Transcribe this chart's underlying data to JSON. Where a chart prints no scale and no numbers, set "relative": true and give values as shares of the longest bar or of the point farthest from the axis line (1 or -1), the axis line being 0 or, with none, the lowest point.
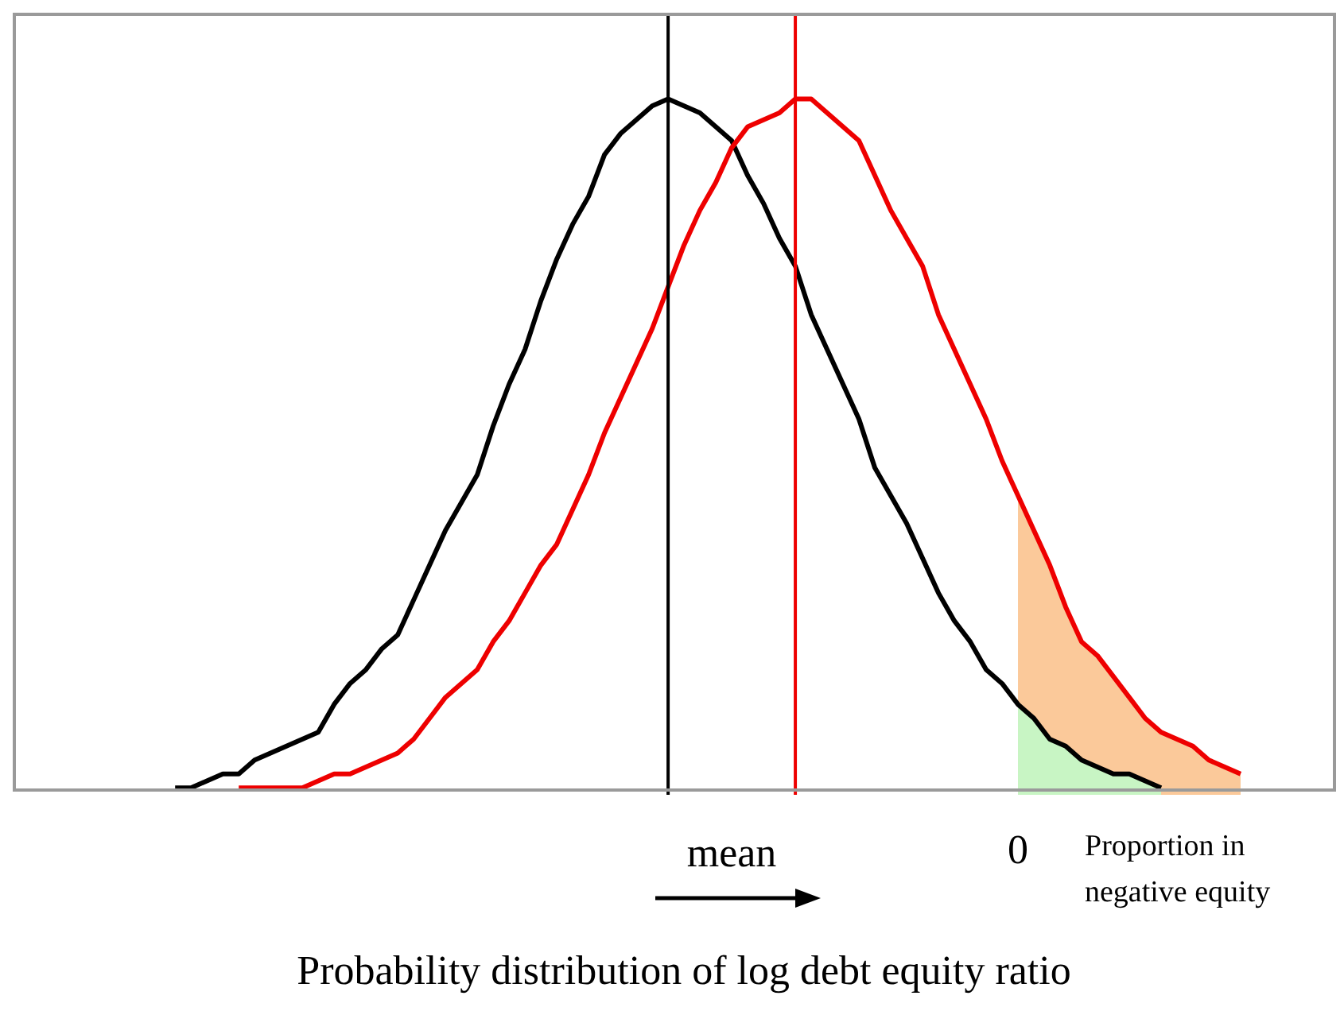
{
  "chart_data": {
    "type": "line",
    "relative": true,
    "xlabel": "Probability distribution of log debt equity ratio",
    "legend": false,
    "grid": false,
    "marker": "none",
    "annotations": [
      "mean",
      "0",
      "Proportion in negative equity"
    ],
    "categories": [
      null,
      null,
      null,
      null,
      null,
      null,
      null,
      null,
      null,
      null,
      null,
      null,
      null,
      null,
      null,
      null,
      null,
      null,
      null,
      null,
      null,
      null,
      null,
      null,
      null,
      null,
      null,
      null,
      null,
      null,
      null,
      null,
      null,
      null,
      null,
      null,
      null,
      null,
      null,
      null,
      null,
      null,
      null,
      null,
      null,
      null,
      null,
      null,
      null,
      null,
      null,
      null,
      null,
      null,
      null,
      null,
      null,
      null,
      null,
      null,
      null,
      null,
      null,
      null,
      null,
      null,
      null,
      null,
      null
    ],
    "series": [
      {
        "type": "area",
        "color": "#fbc99a",
        "values": [
          null,
          null,
          null,
          null,
          null,
          null,
          null,
          null,
          null,
          null,
          null,
          null,
          null,
          null,
          null,
          null,
          null,
          null,
          null,
          null,
          null,
          null,
          null,
          null,
          null,
          null,
          null,
          null,
          null,
          null,
          null,
          null,
          null,
          null,
          null,
          null,
          null,
          null,
          null,
          null,
          null,
          null,
          null,
          null,
          null,
          null,
          null,
          null,
          null,
          null,
          null,
          null,
          null,
          0.43,
          0.38,
          0.33,
          0.27,
          0.22,
          0.2,
          0.17,
          0.14,
          0.11,
          0.09,
          0.08,
          0.07,
          0.05,
          0.04,
          0.03,
          null
        ]
      },
      {
        "type": "area",
        "color": "#c8f5c4",
        "values": [
          null,
          null,
          null,
          null,
          null,
          null,
          null,
          null,
          null,
          null,
          null,
          null,
          null,
          null,
          null,
          null,
          null,
          null,
          null,
          null,
          null,
          null,
          null,
          null,
          null,
          null,
          null,
          null,
          null,
          null,
          null,
          null,
          null,
          null,
          null,
          null,
          null,
          null,
          null,
          null,
          null,
          null,
          null,
          null,
          null,
          null,
          null,
          null,
          null,
          null,
          null,
          null,
          null,
          0.13,
          0.11,
          0.08,
          0.07,
          0.05,
          0.04,
          0.03,
          0.03,
          0.02,
          0.01,
          null,
          null,
          null,
          null,
          null,
          null
        ]
      },
      {
        "color": "#000000",
        "values": [
          0.01,
          0.01,
          0.02,
          0.03,
          0.03,
          0.05,
          0.06,
          0.07,
          0.08,
          0.09,
          0.13,
          0.16,
          0.18,
          0.21,
          0.23,
          0.28,
          0.33,
          0.38,
          0.42,
          0.46,
          0.53,
          0.59,
          0.64,
          0.71,
          0.77,
          0.82,
          0.86,
          0.92,
          0.95,
          0.97,
          0.99,
          1,
          0.99,
          0.98,
          0.96,
          0.94,
          0.89,
          0.85,
          0.8,
          0.76,
          0.69,
          0.64,
          0.59,
          0.54,
          0.47,
          0.43,
          0.39,
          0.34,
          0.29,
          0.25,
          0.22,
          0.18,
          0.16,
          0.13,
          0.11,
          0.08,
          0.07,
          0.05,
          0.04,
          0.03,
          0.03,
          0.02,
          0.01,
          null,
          null,
          null,
          null,
          null,
          null
        ]
      },
      {
        "color": "#ee0000",
        "values": [
          null,
          null,
          null,
          null,
          0.01,
          0.01,
          0.01,
          0.01,
          0.01,
          0.02,
          0.03,
          0.03,
          0.04,
          0.05,
          0.06,
          0.08,
          0.11,
          0.14,
          0.16,
          0.18,
          0.22,
          0.25,
          0.29,
          0.33,
          0.36,
          0.41,
          0.46,
          0.52,
          0.57,
          0.62,
          0.67,
          0.73,
          0.79,
          0.84,
          0.88,
          0.93,
          0.96,
          0.97,
          0.98,
          1,
          1,
          0.98,
          0.96,
          0.94,
          0.89,
          0.84,
          0.8,
          0.76,
          0.69,
          0.64,
          0.59,
          0.54,
          0.48,
          0.43,
          0.38,
          0.33,
          0.27,
          0.22,
          0.2,
          0.17,
          0.14,
          0.11,
          0.09,
          0.08,
          0.07,
          0.05,
          0.04,
          0.03,
          null
        ]
      }
    ]
  }
}
